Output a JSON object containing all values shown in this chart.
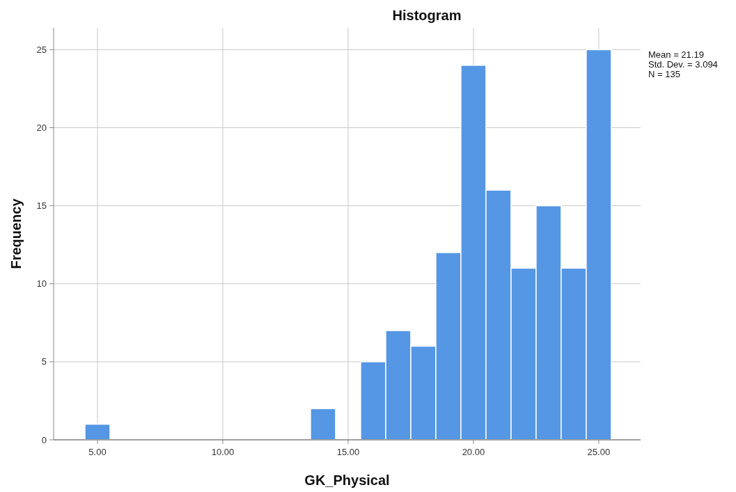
{
  "chart_data": {
    "type": "histogram",
    "title": "Histogram",
    "xlabel": "GK_Physical",
    "ylabel": "Frequency",
    "bins": [
      4.5,
      5.5,
      6.5,
      7.5,
      8.5,
      9.5,
      10.5,
      11.5,
      12.5,
      13.5,
      14.5,
      15.5,
      16.5,
      17.5,
      18.5,
      19.5,
      20.5,
      21.5,
      22.5,
      23.5,
      24.5,
      25.5
    ],
    "values": [
      1,
      0,
      0,
      0,
      0,
      0,
      0,
      0,
      0,
      2,
      0,
      5,
      7,
      6,
      12,
      24,
      16,
      11,
      15,
      11,
      25
    ],
    "color": "#5596e5",
    "xlim": [
      3.25,
      26.67
    ],
    "xticks": [
      {
        "value": 5,
        "label": "5.00"
      },
      {
        "value": 10,
        "label": "10.00"
      },
      {
        "value": 15,
        "label": "15.00"
      },
      {
        "value": 20,
        "label": "20.00"
      },
      {
        "value": 25,
        "label": "25.00"
      }
    ],
    "ylim": [
      0,
      26.4
    ],
    "yticks": [
      0,
      5,
      10,
      15,
      20,
      25
    ],
    "grid": true,
    "annotations": [
      "Mean = 21.19",
      "Std. Dev. = 3.094",
      "N = 135"
    ]
  }
}
